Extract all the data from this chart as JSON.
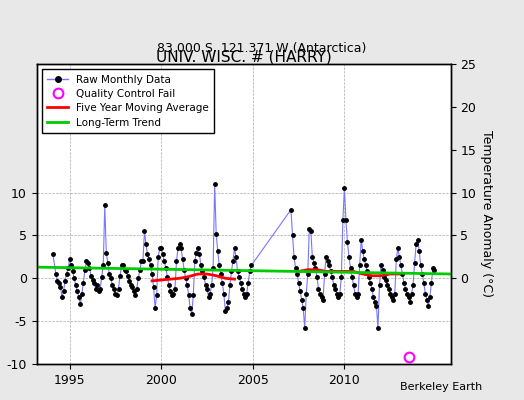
{
  "title": "UNIV. WISC. # (HARRY)",
  "subtitle": "83.000 S, 121.371 W (Antarctica)",
  "ylabel": "Temperature Anomaly (°C)",
  "watermark": "Berkeley Earth",
  "bg_color": "#e8e8e8",
  "plot_bg_color": "#ffffff",
  "xlim": [
    1993.2,
    2015.8
  ],
  "ylim": [
    -10,
    25
  ],
  "yticks_left": [
    -10,
    -5,
    0,
    5,
    10
  ],
  "yticks_right": [
    0,
    5,
    10,
    15,
    20,
    25
  ],
  "xticks": [
    1995,
    2000,
    2005,
    2010
  ],
  "raw_data": [
    [
      1994.083,
      2.8
    ],
    [
      1994.25,
      0.5
    ],
    [
      1994.333,
      -0.3
    ],
    [
      1994.417,
      -0.5
    ],
    [
      1994.5,
      -1.0
    ],
    [
      1994.583,
      -2.2
    ],
    [
      1994.667,
      -1.5
    ],
    [
      1994.75,
      -0.3
    ],
    [
      1994.833,
      0.5
    ],
    [
      1994.917,
      1.2
    ],
    [
      1995.0,
      2.2
    ],
    [
      1995.083,
      1.5
    ],
    [
      1995.167,
      0.8
    ],
    [
      1995.25,
      0.0
    ],
    [
      1995.333,
      -0.8
    ],
    [
      1995.417,
      -1.5
    ],
    [
      1995.5,
      -2.2
    ],
    [
      1995.583,
      -3.0
    ],
    [
      1995.667,
      -1.8
    ],
    [
      1995.75,
      -0.5
    ],
    [
      1995.833,
      1.0
    ],
    [
      1995.917,
      2.0
    ],
    [
      1996.0,
      1.8
    ],
    [
      1996.083,
      1.2
    ],
    [
      1996.167,
      0.3
    ],
    [
      1996.25,
      -0.2
    ],
    [
      1996.333,
      -0.5
    ],
    [
      1996.417,
      -1.2
    ],
    [
      1996.5,
      -0.8
    ],
    [
      1996.583,
      -1.5
    ],
    [
      1996.667,
      -1.2
    ],
    [
      1996.75,
      0.2
    ],
    [
      1996.833,
      1.5
    ],
    [
      1996.917,
      8.5
    ],
    [
      1997.0,
      3.0
    ],
    [
      1997.083,
      1.8
    ],
    [
      1997.167,
      0.5
    ],
    [
      1997.25,
      0.0
    ],
    [
      1997.333,
      -0.8
    ],
    [
      1997.417,
      -1.2
    ],
    [
      1997.5,
      -1.8
    ],
    [
      1997.583,
      -2.0
    ],
    [
      1997.667,
      -1.2
    ],
    [
      1997.75,
      0.3
    ],
    [
      1997.833,
      1.5
    ],
    [
      1997.917,
      1.5
    ],
    [
      1998.0,
      1.0
    ],
    [
      1998.083,
      0.8
    ],
    [
      1998.167,
      0.3
    ],
    [
      1998.25,
      -0.3
    ],
    [
      1998.333,
      -0.8
    ],
    [
      1998.417,
      -1.0
    ],
    [
      1998.5,
      -1.5
    ],
    [
      1998.583,
      -2.0
    ],
    [
      1998.667,
      -1.2
    ],
    [
      1998.75,
      0.0
    ],
    [
      1998.833,
      1.0
    ],
    [
      1998.917,
      2.0
    ],
    [
      1999.0,
      2.0
    ],
    [
      1999.083,
      5.5
    ],
    [
      1999.167,
      4.0
    ],
    [
      1999.25,
      2.8
    ],
    [
      1999.333,
      2.2
    ],
    [
      1999.417,
      1.5
    ],
    [
      1999.5,
      0.5
    ],
    [
      1999.583,
      -1.0
    ],
    [
      1999.667,
      -3.5
    ],
    [
      1999.75,
      -2.0
    ],
    [
      1999.833,
      2.5
    ],
    [
      1999.917,
      3.5
    ],
    [
      2000.0,
      3.5
    ],
    [
      2000.083,
      2.8
    ],
    [
      2000.167,
      2.0
    ],
    [
      2000.25,
      1.2
    ],
    [
      2000.333,
      0.2
    ],
    [
      2000.417,
      -0.8
    ],
    [
      2000.5,
      -1.5
    ],
    [
      2000.583,
      -2.0
    ],
    [
      2000.667,
      -1.8
    ],
    [
      2000.75,
      -1.2
    ],
    [
      2000.833,
      2.0
    ],
    [
      2000.917,
      3.5
    ],
    [
      2001.0,
      4.0
    ],
    [
      2001.083,
      3.5
    ],
    [
      2001.167,
      2.2
    ],
    [
      2001.25,
      1.0
    ],
    [
      2001.333,
      0.0
    ],
    [
      2001.417,
      -0.8
    ],
    [
      2001.5,
      -2.0
    ],
    [
      2001.583,
      -3.5
    ],
    [
      2001.667,
      -4.2
    ],
    [
      2001.75,
      -2.0
    ],
    [
      2001.833,
      2.0
    ],
    [
      2001.917,
      3.0
    ],
    [
      2002.0,
      3.5
    ],
    [
      2002.083,
      2.8
    ],
    [
      2002.167,
      1.5
    ],
    [
      2002.25,
      0.8
    ],
    [
      2002.333,
      0.2
    ],
    [
      2002.417,
      -0.8
    ],
    [
      2002.5,
      -1.2
    ],
    [
      2002.583,
      -2.2
    ],
    [
      2002.667,
      -1.8
    ],
    [
      2002.75,
      -0.8
    ],
    [
      2002.833,
      1.2
    ],
    [
      2002.917,
      11.0
    ],
    [
      2003.0,
      5.2
    ],
    [
      2003.083,
      3.2
    ],
    [
      2003.167,
      1.5
    ],
    [
      2003.25,
      0.5
    ],
    [
      2003.333,
      -0.5
    ],
    [
      2003.417,
      -1.8
    ],
    [
      2003.5,
      -3.8
    ],
    [
      2003.583,
      -3.5
    ],
    [
      2003.667,
      -2.8
    ],
    [
      2003.75,
      -0.8
    ],
    [
      2003.833,
      0.8
    ],
    [
      2003.917,
      2.0
    ],
    [
      2004.0,
      3.5
    ],
    [
      2004.083,
      2.5
    ],
    [
      2004.167,
      0.8
    ],
    [
      2004.25,
      0.2
    ],
    [
      2004.333,
      -0.5
    ],
    [
      2004.417,
      -1.2
    ],
    [
      2004.5,
      -1.8
    ],
    [
      2004.583,
      -2.2
    ],
    [
      2004.667,
      -1.8
    ],
    [
      2004.75,
      -0.5
    ],
    [
      2004.833,
      0.8
    ],
    [
      2004.917,
      1.5
    ],
    [
      2007.083,
      8.0
    ],
    [
      2007.167,
      5.0
    ],
    [
      2007.25,
      2.5
    ],
    [
      2007.333,
      1.2
    ],
    [
      2007.417,
      0.5
    ],
    [
      2007.5,
      -0.5
    ],
    [
      2007.583,
      -1.5
    ],
    [
      2007.667,
      -2.5
    ],
    [
      2007.75,
      -3.5
    ],
    [
      2007.833,
      -5.8
    ],
    [
      2007.917,
      -1.8
    ],
    [
      2008.0,
      0.5
    ],
    [
      2008.083,
      5.8
    ],
    [
      2008.167,
      5.5
    ],
    [
      2008.25,
      2.5
    ],
    [
      2008.333,
      1.8
    ],
    [
      2008.417,
      1.2
    ],
    [
      2008.5,
      0.2
    ],
    [
      2008.583,
      -1.2
    ],
    [
      2008.667,
      -1.8
    ],
    [
      2008.75,
      -2.2
    ],
    [
      2008.833,
      -2.5
    ],
    [
      2008.917,
      0.5
    ],
    [
      2009.0,
      2.5
    ],
    [
      2009.083,
      2.0
    ],
    [
      2009.167,
      1.5
    ],
    [
      2009.25,
      0.8
    ],
    [
      2009.333,
      0.2
    ],
    [
      2009.417,
      -0.8
    ],
    [
      2009.5,
      -1.2
    ],
    [
      2009.583,
      -1.8
    ],
    [
      2009.667,
      -2.2
    ],
    [
      2009.75,
      -1.8
    ],
    [
      2009.833,
      0.2
    ],
    [
      2009.917,
      6.8
    ],
    [
      2010.0,
      10.5
    ],
    [
      2010.083,
      6.8
    ],
    [
      2010.167,
      4.2
    ],
    [
      2010.25,
      2.5
    ],
    [
      2010.333,
      1.2
    ],
    [
      2010.417,
      0.2
    ],
    [
      2010.5,
      -0.8
    ],
    [
      2010.583,
      -1.8
    ],
    [
      2010.667,
      -2.2
    ],
    [
      2010.75,
      -1.8
    ],
    [
      2010.833,
      1.5
    ],
    [
      2010.917,
      4.5
    ],
    [
      2011.0,
      3.2
    ],
    [
      2011.083,
      2.2
    ],
    [
      2011.167,
      1.5
    ],
    [
      2011.25,
      0.8
    ],
    [
      2011.333,
      0.2
    ],
    [
      2011.417,
      -0.5
    ],
    [
      2011.5,
      -1.2
    ],
    [
      2011.583,
      -2.2
    ],
    [
      2011.667,
      -2.8
    ],
    [
      2011.75,
      -3.2
    ],
    [
      2011.833,
      -5.8
    ],
    [
      2011.917,
      -0.8
    ],
    [
      2012.0,
      1.5
    ],
    [
      2012.083,
      1.0
    ],
    [
      2012.167,
      0.2
    ],
    [
      2012.25,
      -0.2
    ],
    [
      2012.333,
      -0.8
    ],
    [
      2012.417,
      -1.2
    ],
    [
      2012.5,
      -1.8
    ],
    [
      2012.583,
      -2.2
    ],
    [
      2012.667,
      -2.5
    ],
    [
      2012.75,
      -1.8
    ],
    [
      2012.833,
      2.2
    ],
    [
      2012.917,
      3.5
    ],
    [
      2013.0,
      2.5
    ],
    [
      2013.083,
      1.5
    ],
    [
      2013.167,
      0.5
    ],
    [
      2013.25,
      -0.5
    ],
    [
      2013.333,
      -1.2
    ],
    [
      2013.417,
      -1.8
    ],
    [
      2013.5,
      -2.2
    ],
    [
      2013.583,
      -2.8
    ],
    [
      2013.667,
      -1.8
    ],
    [
      2013.75,
      -0.8
    ],
    [
      2013.833,
      1.8
    ],
    [
      2013.917,
      4.0
    ],
    [
      2014.0,
      4.5
    ],
    [
      2014.083,
      3.2
    ],
    [
      2014.167,
      1.5
    ],
    [
      2014.25,
      0.5
    ],
    [
      2014.333,
      -0.5
    ],
    [
      2014.417,
      -1.8
    ],
    [
      2014.5,
      -2.5
    ],
    [
      2014.583,
      -3.2
    ],
    [
      2014.667,
      -2.2
    ],
    [
      2014.75,
      -0.5
    ],
    [
      2014.833,
      1.2
    ],
    [
      2014.917,
      1.0
    ]
  ],
  "moving_avg_x": [
    1999.5,
    2000.0,
    2000.5,
    2001.0,
    2001.5,
    2002.0,
    2002.5,
    2003.0,
    2003.5,
    2004.0,
    2007.5,
    2008.0,
    2008.5,
    2009.0,
    2009.5,
    2010.0,
    2010.5,
    2011.0,
    2011.5,
    2012.0,
    2012.5,
    2013.0
  ],
  "moving_avg_y": [
    -0.3,
    -0.2,
    -0.1,
    0.0,
    0.2,
    0.5,
    0.5,
    0.3,
    0.0,
    -0.1,
    0.8,
    1.0,
    1.0,
    0.8,
    0.8,
    0.8,
    0.8,
    0.5,
    0.3,
    0.3,
    0.5,
    0.5
  ],
  "trend_x": [
    1993.2,
    2015.8
  ],
  "trend_y": [
    1.3,
    0.5
  ],
  "qc_fail_x": 2013.5,
  "qc_fail_y": -9.2,
  "raw_color": "#7777ff",
  "marker_color": "#000000",
  "moving_avg_color": "#ff0000",
  "trend_color": "#00cc00",
  "qc_color": "#ff00ff",
  "grid_color": "#aaaaaa",
  "title_fontsize": 11,
  "subtitle_fontsize": 9,
  "tick_fontsize": 9,
  "ylabel_fontsize": 9
}
